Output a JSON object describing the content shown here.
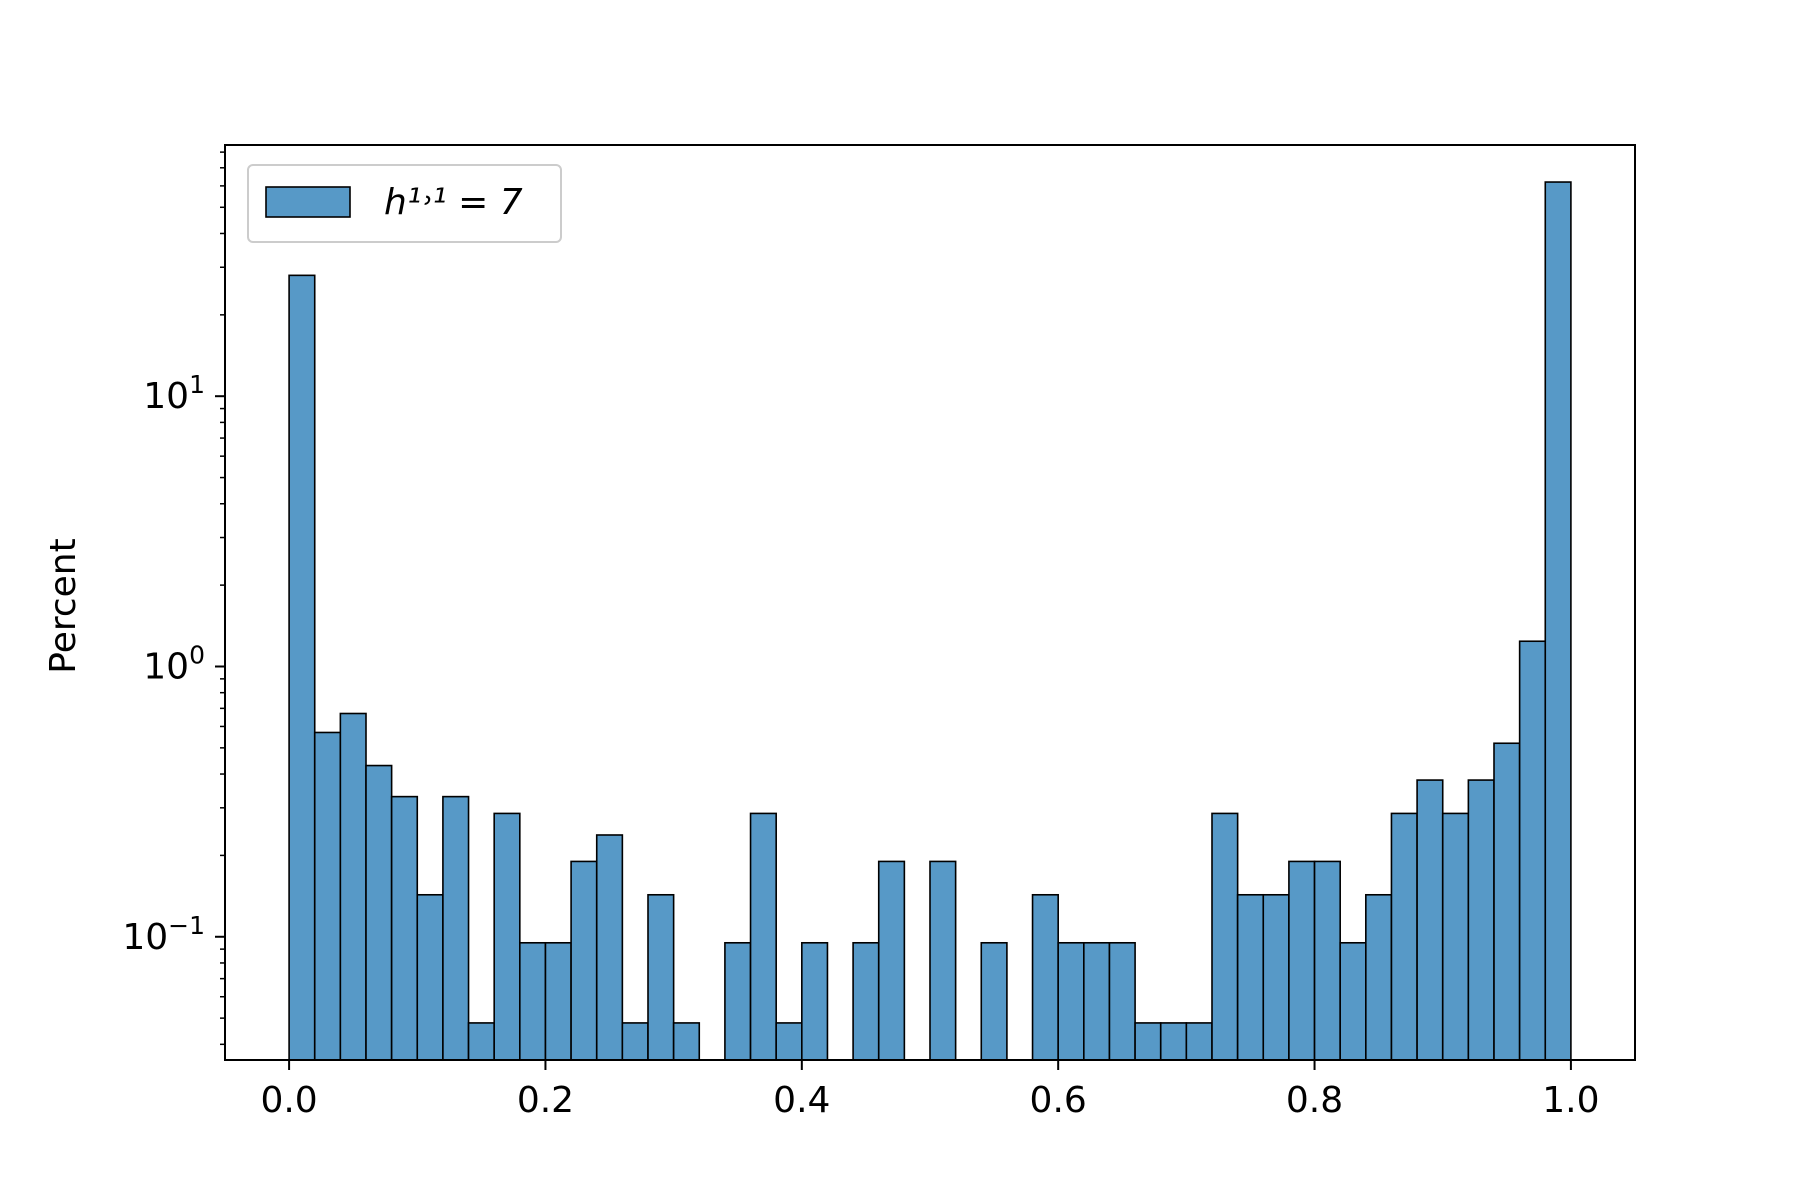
{
  "chart_data": {
    "type": "bar",
    "title": "",
    "xlabel": "",
    "ylabel": "Percent",
    "y_scale": "log",
    "ylim": [
      0.035,
      85
    ],
    "xlim": [
      -0.05,
      1.05
    ],
    "grid": false,
    "legend": {
      "location": "upper-left",
      "entries": [
        "h¹˒¹ = 7"
      ]
    },
    "bar_color": "#5799c7",
    "edge_color": "#000000",
    "x_ticks": [
      0.0,
      0.2,
      0.4,
      0.6,
      0.8,
      1.0
    ],
    "x_tick_labels": [
      "0.0",
      "0.2",
      "0.4",
      "0.6",
      "0.8",
      "1.0"
    ],
    "y_ticks": [
      0.1,
      1,
      10
    ],
    "y_tick_labels": [
      {
        "base": "10",
        "exp": "−1"
      },
      {
        "base": "10",
        "exp": "0"
      },
      {
        "base": "10",
        "exp": "1"
      }
    ],
    "bin_width": 0.02,
    "series": [
      {
        "name": "h¹˒¹ = 7",
        "bin_starts": [
          0.0,
          0.02,
          0.04,
          0.06,
          0.08,
          0.1,
          0.12,
          0.14,
          0.16,
          0.18,
          0.2,
          0.22,
          0.24,
          0.26,
          0.28,
          0.3,
          0.32,
          0.34,
          0.36,
          0.38,
          0.4,
          0.42,
          0.44,
          0.46,
          0.48,
          0.5,
          0.52,
          0.54,
          0.56,
          0.58,
          0.6,
          0.62,
          0.64,
          0.66,
          0.68,
          0.7,
          0.72,
          0.74,
          0.76,
          0.78,
          0.8,
          0.82,
          0.84,
          0.86,
          0.88,
          0.9,
          0.92,
          0.94,
          0.96,
          0.98
        ],
        "values": [
          28,
          0.57,
          0.67,
          0.43,
          0.33,
          0.143,
          0.33,
          0.048,
          0.286,
          0.095,
          0.095,
          0.19,
          0.238,
          0.048,
          0.143,
          0.048,
          0,
          0.095,
          0.286,
          0.048,
          0.095,
          0,
          0.095,
          0.19,
          0,
          0.19,
          0,
          0.095,
          0,
          0.143,
          0.095,
          0.095,
          0.095,
          0.048,
          0.048,
          0.048,
          0.286,
          0.143,
          0.143,
          0.19,
          0.19,
          0.095,
          0.143,
          0.286,
          0.38,
          0.286,
          0.38,
          0.52,
          1.24,
          62
        ]
      }
    ]
  }
}
